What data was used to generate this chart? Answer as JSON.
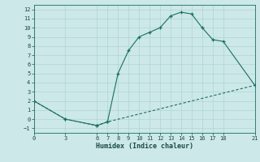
{
  "xlabel": "Humidex (Indice chaleur)",
  "bg_color": "#cce8e8",
  "line_color": "#1a6e64",
  "curve1_x": [
    0,
    3,
    6,
    7,
    8,
    9,
    10,
    11,
    12,
    13,
    14,
    15,
    16,
    17,
    18,
    21
  ],
  "curve1_y": [
    2,
    0,
    -0.7,
    -0.3,
    5,
    7.5,
    9.0,
    9.5,
    10.0,
    11.3,
    11.7,
    11.5,
    10.0,
    8.7,
    8.5,
    3.7
  ],
  "curve2_x": [
    0,
    3,
    6,
    7,
    21
  ],
  "curve2_y": [
    2,
    0,
    -0.7,
    -0.3,
    3.7
  ],
  "xlim": [
    0,
    21
  ],
  "ylim": [
    -1.5,
    12.5
  ],
  "xticks": [
    0,
    3,
    6,
    7,
    8,
    9,
    10,
    11,
    12,
    13,
    14,
    15,
    16,
    17,
    18,
    21
  ],
  "yticks": [
    -1,
    0,
    1,
    2,
    3,
    4,
    5,
    6,
    7,
    8,
    9,
    10,
    11,
    12
  ],
  "grid_color": "#b0d4d4",
  "tick_color": "#1a4a46",
  "tick_fontsize": 5.0,
  "xlabel_fontsize": 6.0
}
